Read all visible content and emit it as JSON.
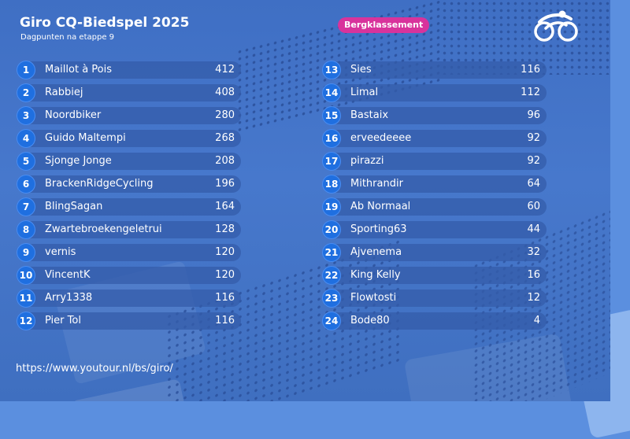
{
  "header": {
    "title": "Giro CQ-Biedspel 2025",
    "subtitle": "Dagpunten na etappe 9",
    "badge": "Bergklassement",
    "logo_icon": "cyclist-logo-icon"
  },
  "colors": {
    "panel": "#4778cc",
    "badge": "#d8339c",
    "rank_circle": "#1f6fe0",
    "row": "#345caa"
  },
  "standings": {
    "left": [
      {
        "rank": "1",
        "name": "Maillot à Pois",
        "points": "412"
      },
      {
        "rank": "2",
        "name": "Rabbiej",
        "points": "408"
      },
      {
        "rank": "3",
        "name": "Noordbiker",
        "points": "280"
      },
      {
        "rank": "4",
        "name": "Guido Maltempi",
        "points": "268"
      },
      {
        "rank": "5",
        "name": "Sjonge Jonge",
        "points": "208"
      },
      {
        "rank": "6",
        "name": "BrackenRidgeCycling",
        "points": "196"
      },
      {
        "rank": "7",
        "name": "BlingSagan",
        "points": "164"
      },
      {
        "rank": "8",
        "name": "Zwartebroekengeletrui",
        "points": "128"
      },
      {
        "rank": "9",
        "name": "vernis",
        "points": "120"
      },
      {
        "rank": "10",
        "name": "VincentK",
        "points": "120"
      },
      {
        "rank": "11",
        "name": "Arry1338",
        "points": "116"
      },
      {
        "rank": "12",
        "name": "Pier Tol",
        "points": "116"
      }
    ],
    "right": [
      {
        "rank": "13",
        "name": "Sies",
        "points": "116"
      },
      {
        "rank": "14",
        "name": "Limal",
        "points": "112"
      },
      {
        "rank": "15",
        "name": "Bastaix",
        "points": "96"
      },
      {
        "rank": "16",
        "name": "erveedeeee",
        "points": "92"
      },
      {
        "rank": "17",
        "name": "pirazzi",
        "points": "92"
      },
      {
        "rank": "18",
        "name": "Mithrandir",
        "points": "64"
      },
      {
        "rank": "19",
        "name": "Ab Normaal",
        "points": "60"
      },
      {
        "rank": "20",
        "name": "Sporting63",
        "points": "44"
      },
      {
        "rank": "21",
        "name": "Ajvenema",
        "points": "32"
      },
      {
        "rank": "22",
        "name": "King Kelly",
        "points": "16"
      },
      {
        "rank": "23",
        "name": "Flowtosti",
        "points": "12"
      },
      {
        "rank": "24",
        "name": "Bode80",
        "points": "4"
      }
    ]
  },
  "footer": {
    "url": "https://www.youtour.nl/bs/giro/"
  }
}
